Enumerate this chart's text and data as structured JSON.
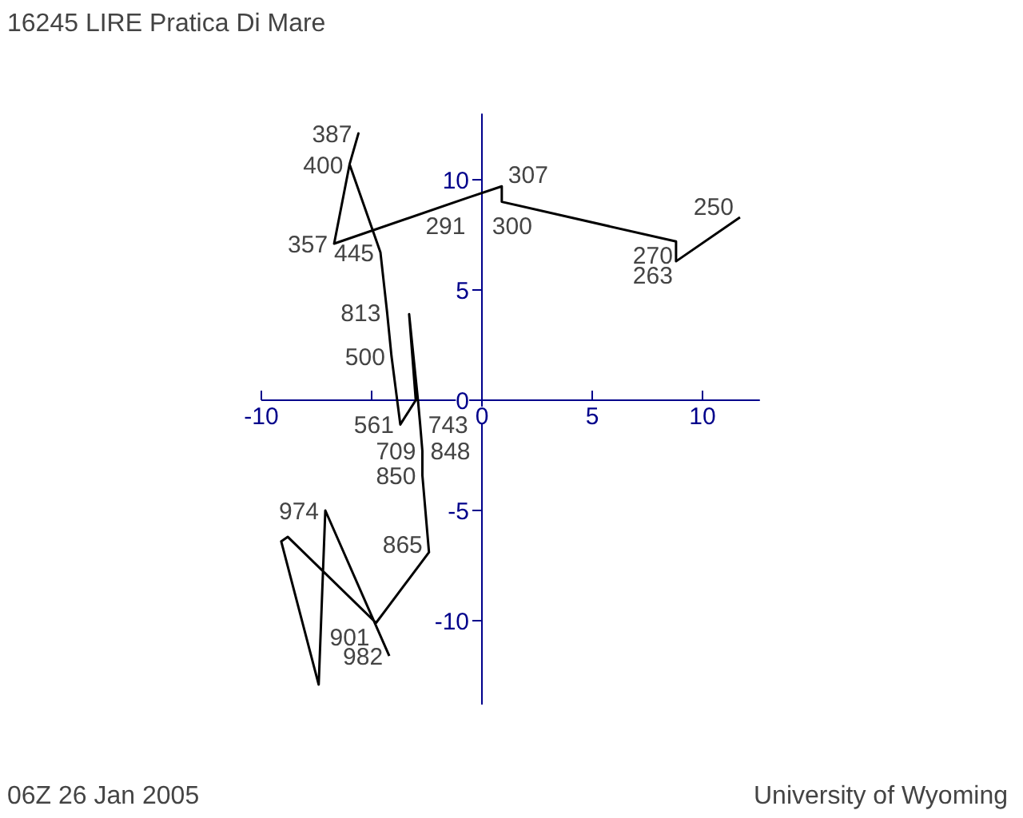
{
  "chart_data": {
    "type": "line",
    "title": "16245 LIRE Pratica Di Mare",
    "x": [
      -4.2,
      -7.1,
      -7.4,
      -9.1,
      -8.8,
      -4.8,
      -2.4,
      -2.7,
      -2.7,
      -2.8,
      -2.9,
      -3.3,
      -3.0,
      -3.7,
      -4.1,
      -4.3,
      -4.6,
      -6.0,
      -5.6,
      -6.0,
      -6.7,
      -0.6,
      0.9,
      0.9,
      8.8,
      8.8,
      11.7
    ],
    "series": [
      {
        "color": "#000000",
        "values": [
          -11.6,
          -5.0,
          -12.9,
          -6.4,
          -6.2,
          -10.1,
          -6.9,
          -3.4,
          -2.3,
          -1.1,
          0.0,
          3.9,
          0.0,
          -1.1,
          2.0,
          4.0,
          6.7,
          10.7,
          12.1,
          10.7,
          7.1,
          9.2,
          9.7,
          9.0,
          7.2,
          6.3,
          8.3
        ]
      }
    ],
    "xlim": [
      -10,
      12.6
    ],
    "ylim": [
      -13.8,
      13
    ],
    "xticks": [
      -10,
      {
        "value": -5,
        "label": null
      },
      0,
      5,
      10
    ],
    "yticks": [
      -10,
      -5,
      0,
      5,
      10
    ],
    "grid": false,
    "marker": "none",
    "line_style": "solid",
    "annotations": [
      {
        "text": "387",
        "x": -5.6,
        "y": 12.1
      },
      {
        "text": "400",
        "x": -6.0,
        "y": 10.7
      },
      {
        "text": "357",
        "x": -6.7,
        "y": 7.1
      },
      {
        "text": "445",
        "x": -4.6,
        "y": 6.7
      },
      {
        "text": "813",
        "x": -4.3,
        "y": 4.0
      },
      {
        "text": "500",
        "x": -4.1,
        "y": 2.0
      },
      {
        "text": "743",
        "x": -2.8,
        "y": -1.1
      },
      {
        "text": "561",
        "x": -3.7,
        "y": -1.1
      },
      {
        "text": "709",
        "x": -2.7,
        "y": -2.3
      },
      {
        "text": "848",
        "x": -2.7,
        "y": -2.3
      },
      {
        "text": "850",
        "x": -2.7,
        "y": -3.4
      },
      {
        "text": "974",
        "x": -7.1,
        "y": -5.0
      },
      {
        "text": "865",
        "x": -2.4,
        "y": -6.9
      },
      {
        "text": "901",
        "x": -4.8,
        "y": -10.1
      },
      {
        "text": "982",
        "x": -4.2,
        "y": -11.6
      },
      {
        "text": "307",
        "x": 0.9,
        "y": 9.7
      },
      {
        "text": "300",
        "x": 0.9,
        "y": 9.0
      },
      {
        "text": "291",
        "x": -0.6,
        "y": 9.2
      },
      {
        "text": "270",
        "x": 8.8,
        "y": 7.2
      },
      {
        "text": "263",
        "x": 8.8,
        "y": 6.3
      },
      {
        "text": "250",
        "x": 11.7,
        "y": 8.3
      },
      "06Z 26 Jan 2005",
      "University of Wyoming"
    ]
  }
}
